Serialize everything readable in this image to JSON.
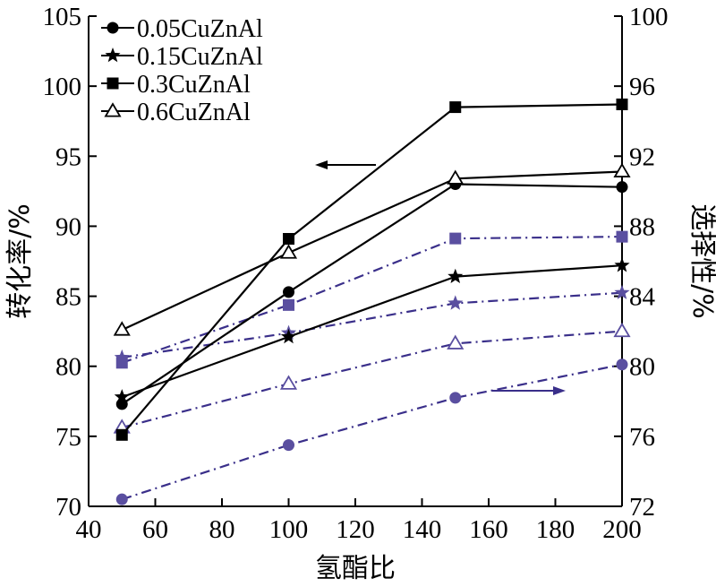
{
  "chart_data": {
    "type": "line",
    "xlabel": "氢酯比",
    "ylabel_left": "转化率/%",
    "ylabel_right": "选择性/%",
    "xlim": [
      40,
      200
    ],
    "ylim_left": [
      70,
      105
    ],
    "ylim_right": [
      72,
      100
    ],
    "x_ticks": [
      "40",
      "60",
      "80",
      "100",
      "120",
      "140",
      "160",
      "180",
      "200"
    ],
    "y_left_ticks": [
      "70",
      "75",
      "80",
      "85",
      "90",
      "95",
      "100",
      "105"
    ],
    "y_right_ticks": [
      "72",
      "76",
      "80",
      "84",
      "88",
      "92",
      "96",
      "100"
    ],
    "x": [
      50,
      100,
      150,
      200
    ],
    "legend": [
      "0.05CuZnAl",
      "0.15CuZnAl",
      "0.3CuZnAl",
      "0.6CuZnAl"
    ],
    "conversion_series": [
      {
        "name": "0.05CuZnAl",
        "marker": "circle",
        "values": [
          77.3,
          85.3,
          93.0,
          92.8
        ]
      },
      {
        "name": "0.15CuZnAl",
        "marker": "star",
        "values": [
          77.8,
          82.1,
          86.4,
          87.2
        ]
      },
      {
        "name": "0.3CuZnAl",
        "marker": "square",
        "values": [
          75.1,
          89.1,
          98.5,
          98.7
        ]
      },
      {
        "name": "0.6CuZnAl",
        "marker": "open-triangle",
        "values": [
          82.6,
          88.1,
          93.4,
          93.9
        ]
      }
    ],
    "selectivity_series": [
      {
        "name": "0.05CuZnAl",
        "marker": "circle",
        "values": [
          72.4,
          75.5,
          78.2,
          80.1
        ]
      },
      {
        "name": "0.15CuZnAl",
        "marker": "star",
        "values": [
          80.5,
          81.9,
          83.6,
          84.2
        ]
      },
      {
        "name": "0.3CuZnAl",
        "marker": "square",
        "values": [
          80.2,
          83.5,
          87.3,
          87.4
        ]
      },
      {
        "name": "0.6CuZnAl",
        "marker": "open-triangle",
        "values": [
          76.5,
          79.0,
          81.3,
          82.0
        ]
      }
    ],
    "arrows": [
      {
        "points_to": "left-axis",
        "direction": "left"
      },
      {
        "points_to": "right-axis",
        "direction": "right"
      }
    ],
    "colors": {
      "conversion": "#000000",
      "selectivity": "#3a2f8a",
      "selectivity_marker": "#5a4fa0"
    }
  }
}
